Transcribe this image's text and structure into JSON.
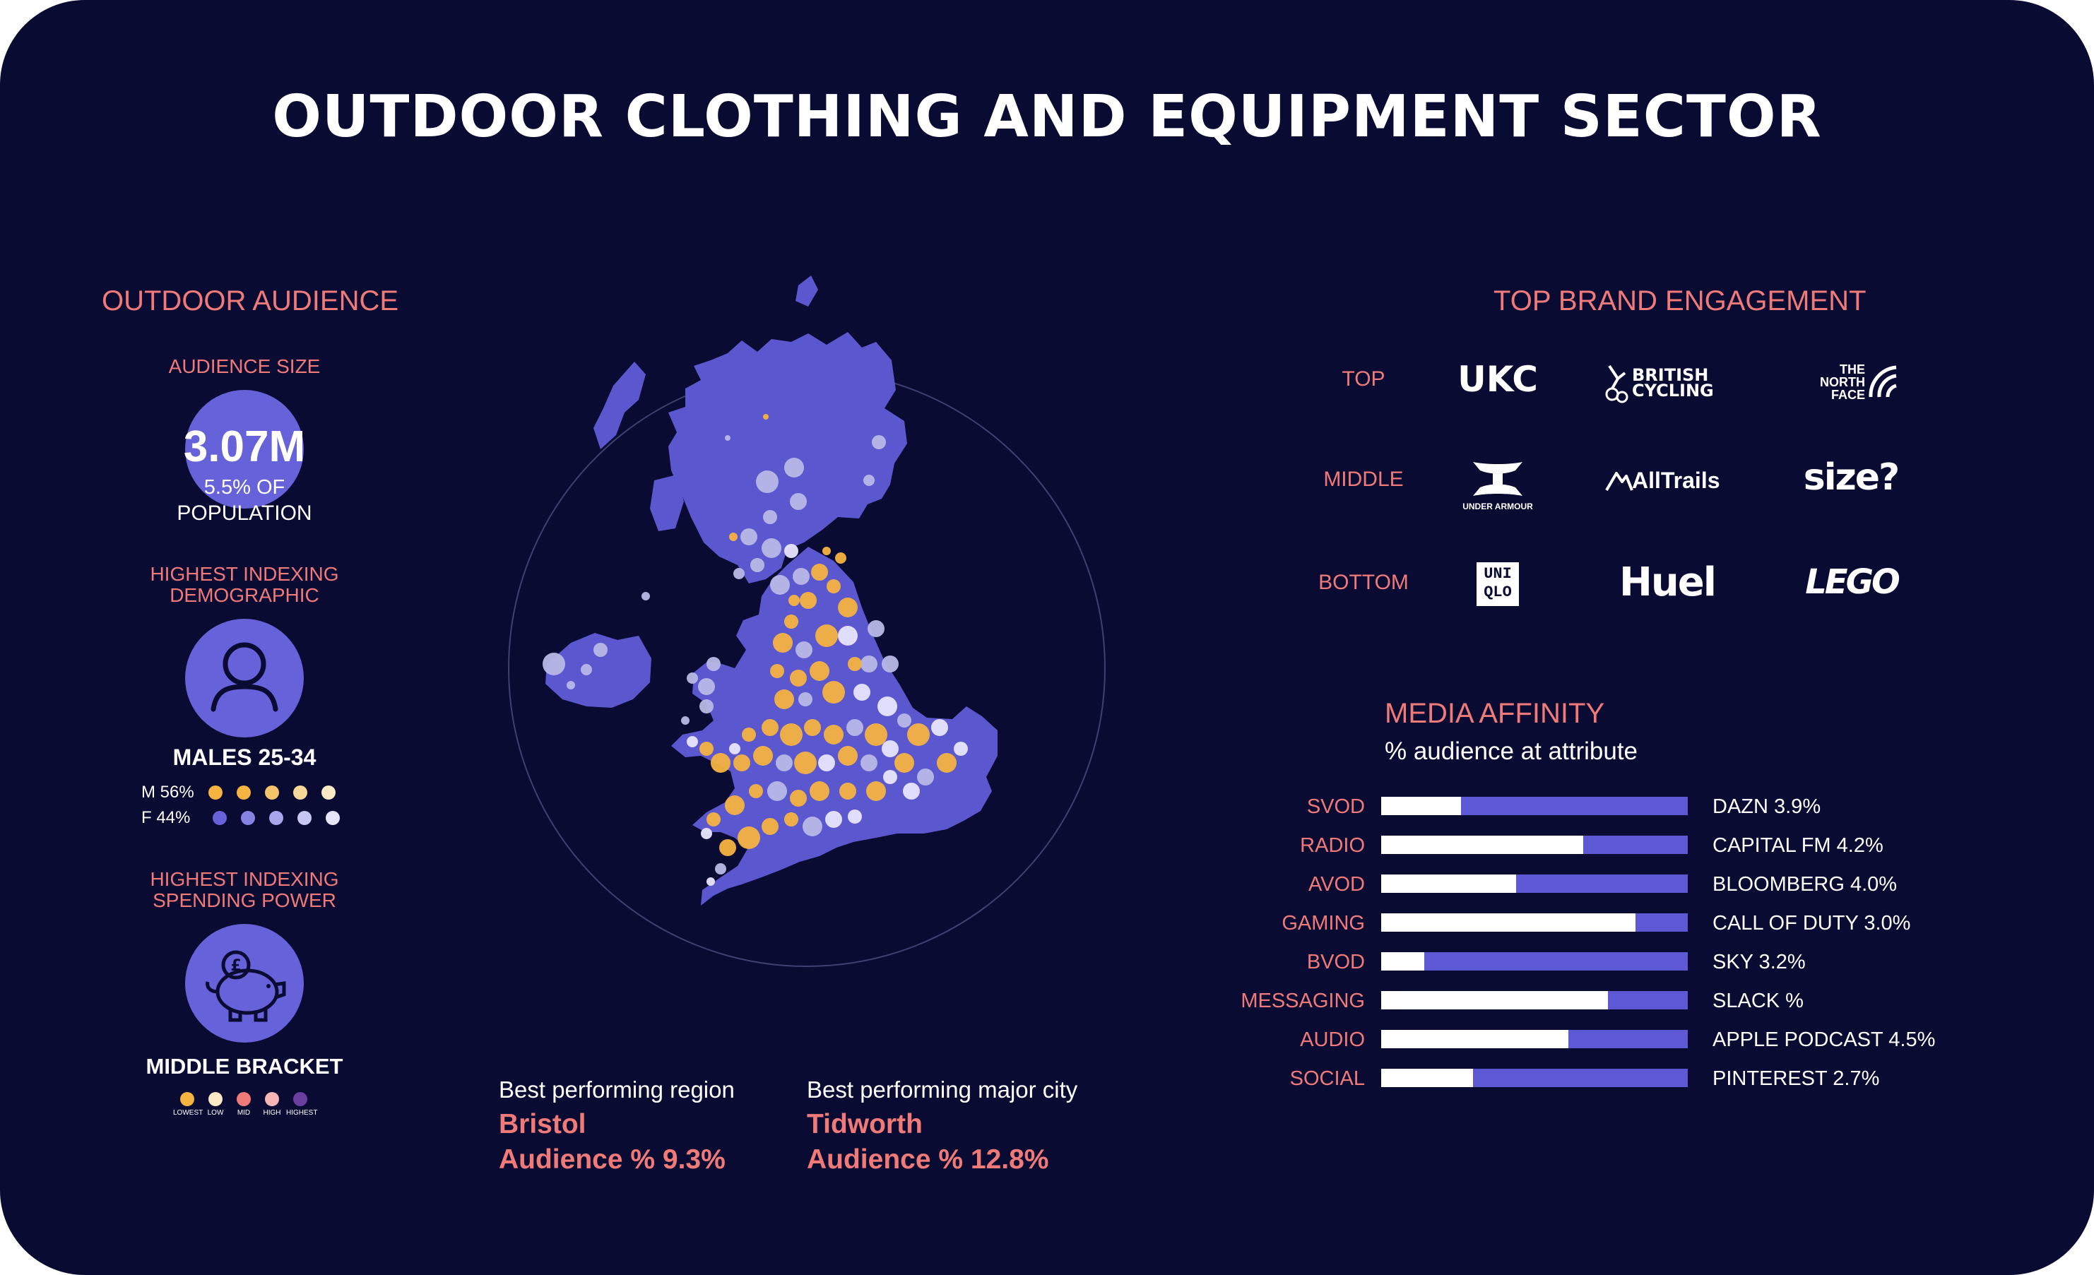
{
  "title": "OUTDOOR CLOTHING  AND EQUIPMENT SECTOR",
  "colors": {
    "background": "#0a0b33",
    "accent_coral": "#f07a78",
    "purple": "#6662d9",
    "bar_purple": "#5d58d4",
    "map_land": "#5b57cf",
    "map_orange": "#f5b341",
    "map_grey": "#b8b9e6",
    "map_light": "#e9e6ff"
  },
  "audience": {
    "heading": "OUTDOOR AUDIENCE",
    "size_label": "AUDIENCE SIZE",
    "size_value": "3.07M",
    "size_sub_line1": "5.5% OF",
    "size_sub_line2": "POPULATION",
    "demographic_label_line1": "HIGHEST INDEXING",
    "demographic_label_line2": "DEMOGRAPHIC",
    "demographic_icon": "person-icon",
    "demographic_value": "MALES 25-34",
    "male_label": "M 56%",
    "female_label": "F 44%",
    "male_dot_colors": [
      "#f5b341",
      "#f5b341",
      "#f5c46a",
      "#f7d89a",
      "#fbe9c6"
    ],
    "female_dot_colors": [
      "#6662d9",
      "#8783e3",
      "#a9a6ec",
      "#c8c6f3",
      "#e5e4fb"
    ],
    "spending_label_line1": "HIGHEST INDEXING",
    "spending_label_line2": "SPENDING POWER",
    "spending_icon": "piggy-bank-icon",
    "spending_value": "MIDDLE BRACKET",
    "spending_legend": [
      {
        "label": "LOWEST",
        "color": "#f5b341"
      },
      {
        "label": "LOW",
        "color": "#fbe9c6"
      },
      {
        "label": "MID",
        "color": "#f07a78"
      },
      {
        "label": "HIGH",
        "color": "#f7b6b4"
      },
      {
        "label": "HIGHEST",
        "color": "#6b3fa0"
      }
    ]
  },
  "best": {
    "region_label": "Best performing region",
    "region_name": "Bristol",
    "region_value": "Audience % 9.3%",
    "city_label": "Best performing major city",
    "city_name": "Tidworth",
    "city_value": "Audience % 12.8%"
  },
  "brands": {
    "heading": "TOP BRAND ENGAGEMENT",
    "rows": [
      {
        "label": "TOP",
        "logos": [
          "UKC",
          "BRITISH CYCLING",
          "THE NORTH FACE"
        ]
      },
      {
        "label": "MIDDLE",
        "logos": [
          "UNDER ARMOUR",
          "AllTrails",
          "size?"
        ]
      },
      {
        "label": "BOTTOM",
        "logos": [
          "UNIQLO",
          "Huel",
          "LEGO"
        ]
      }
    ]
  },
  "media": {
    "heading": "MEDIA AFFINITY",
    "subheading": "% audience at attribute",
    "rows": [
      {
        "label": "SVOD",
        "fill": 0.26,
        "value": "DAZN 3.9%"
      },
      {
        "label": "RADIO",
        "fill": 0.66,
        "value": "CAPITAL FM 4.2%"
      },
      {
        "label": "AVOD",
        "fill": 0.44,
        "value": "BLOOMBERG 4.0%"
      },
      {
        "label": "GAMING",
        "fill": 0.83,
        "value": "CALL OF DUTY 3.0%"
      },
      {
        "label": "BVOD",
        "fill": 0.14,
        "value": "SKY 3.2%"
      },
      {
        "label": "MESSAGING",
        "fill": 0.74,
        "value": "SLACK %"
      },
      {
        "label": "AUDIO",
        "fill": 0.61,
        "value": "APPLE PODCAST 4.5%"
      },
      {
        "label": "SOCIAL",
        "fill": 0.3,
        "value": "PINTEREST 2.7%"
      }
    ]
  }
}
